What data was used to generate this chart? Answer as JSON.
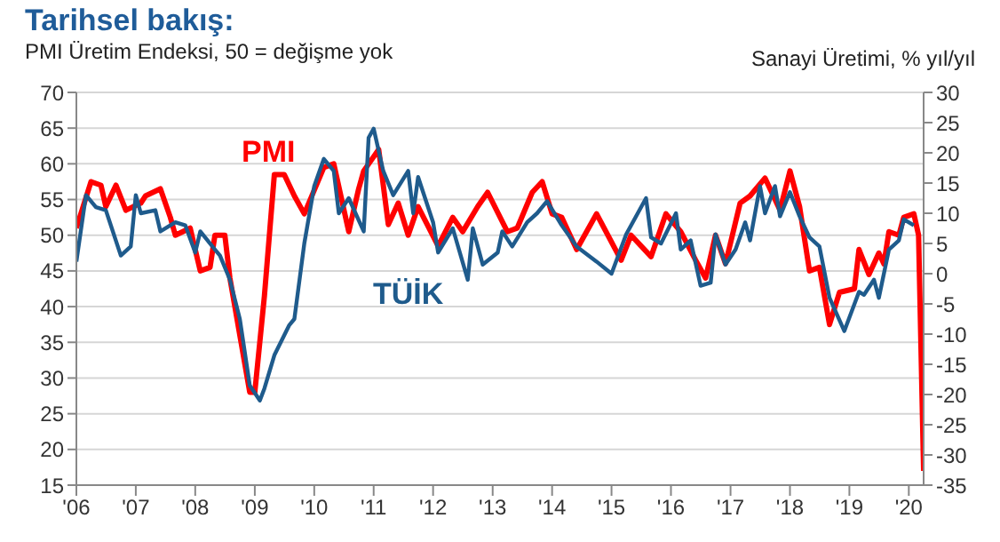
{
  "chart_data": {
    "type": "line",
    "title": "Tarihsel bakış:",
    "ylabel": "PMI Üretim Endeksi, 50 = değişme yok",
    "y2label": "Sanayi Üretimi, % yıl/yıl",
    "xlim": [
      "2006-01",
      "2020-04"
    ],
    "xticks": [
      {
        "value": "2006-01",
        "label": "'06"
      },
      {
        "value": "2007-01",
        "label": "'07"
      },
      {
        "value": "2008-01",
        "label": "'08"
      },
      {
        "value": "2009-01",
        "label": "'09"
      },
      {
        "value": "2010-01",
        "label": "'10"
      },
      {
        "value": "2011-01",
        "label": "'11"
      },
      {
        "value": "2012-01",
        "label": "'12"
      },
      {
        "value": "2013-01",
        "label": "'13"
      },
      {
        "value": "2014-01",
        "label": "'14"
      },
      {
        "value": "2015-01",
        "label": "'15"
      },
      {
        "value": "2016-01",
        "label": "'16"
      },
      {
        "value": "2017-01",
        "label": "'17"
      },
      {
        "value": "2018-01",
        "label": "'18"
      },
      {
        "value": "2019-01",
        "label": "'19"
      },
      {
        "value": "2020-01",
        "label": "'20"
      }
    ],
    "ylim": [
      15,
      70
    ],
    "yticks": [
      15,
      20,
      25,
      30,
      35,
      40,
      45,
      50,
      55,
      60,
      65,
      70
    ],
    "y2lim": [
      -35,
      30
    ],
    "y2ticks": [
      -35,
      -30,
      -25,
      -20,
      -15,
      -10,
      -5,
      0,
      5,
      10,
      15,
      20,
      25,
      30
    ],
    "grid": "y",
    "marker": "none",
    "line_style": "solid",
    "series": [
      {
        "name": "PMI",
        "color": "#ff0000",
        "x": [
          "2006-01",
          "2006-04",
          "2006-06",
          "2006-07",
          "2006-09",
          "2006-11",
          "2007-02",
          "2007-03",
          "2007-06",
          "2007-08",
          "2007-09",
          "2007-12",
          "2008-02",
          "2008-04",
          "2008-05",
          "2008-07",
          "2008-08",
          "2008-12",
          "2009-01",
          "2009-03",
          "2009-05",
          "2009-07",
          "2009-09",
          "2009-11",
          "2010-03",
          "2010-05",
          "2010-08",
          "2010-10",
          "2010-11",
          "2011-02",
          "2011-04",
          "2011-06",
          "2011-08",
          "2011-10",
          "2012-02",
          "2012-05",
          "2012-07",
          "2012-10",
          "2012-12",
          "2013-04",
          "2013-06",
          "2013-09",
          "2013-11",
          "2014-01",
          "2014-03",
          "2014-06",
          "2014-10",
          "2015-03",
          "2015-05",
          "2015-09",
          "2015-12",
          "2016-03",
          "2016-06",
          "2016-08",
          "2016-10",
          "2016-12",
          "2017-03",
          "2017-05",
          "2017-08",
          "2017-11",
          "2018-01",
          "2018-03",
          "2018-05",
          "2018-07",
          "2018-09",
          "2018-11",
          "2019-02",
          "2019-03",
          "2019-05",
          "2019-07",
          "2019-08",
          "2019-09",
          "2019-11",
          "2019-12",
          "2020-02",
          "2020-03",
          "2020-04"
        ],
        "values": [
          51,
          57.5,
          57,
          54,
          57,
          53.5,
          54.5,
          55.5,
          56.5,
          52.5,
          50,
          51,
          45,
          45.5,
          50,
          50,
          44,
          28,
          28,
          41.5,
          58.5,
          58.5,
          55.5,
          53,
          59.5,
          60,
          50.5,
          56.5,
          59,
          62,
          51.5,
          54.5,
          50,
          54,
          48.5,
          52.5,
          50.5,
          54,
          56,
          50.5,
          51,
          56,
          57.5,
          53,
          52.5,
          48,
          53,
          46.5,
          50,
          47,
          53,
          50.5,
          46.5,
          44,
          50,
          46,
          54.5,
          55.5,
          58,
          53.5,
          59,
          54,
          45,
          45.5,
          37.5,
          42,
          42.5,
          48,
          44.5,
          47.5,
          46,
          50.5,
          50,
          52.5,
          53,
          50,
          17
        ]
      },
      {
        "name": "TÜİK",
        "color": "#1f5b8c",
        "axis": "y2",
        "x": [
          "2006-01",
          "2006-03",
          "2006-05",
          "2006-07",
          "2006-10",
          "2006-12",
          "2007-01",
          "2007-02",
          "2007-05",
          "2007-06",
          "2007-09",
          "2007-11",
          "2008-01",
          "2008-02",
          "2008-05",
          "2008-06",
          "2008-08",
          "2008-10",
          "2008-12",
          "2009-02",
          "2009-03",
          "2009-05",
          "2009-08",
          "2009-09",
          "2009-11",
          "2010-01",
          "2010-03",
          "2010-05",
          "2010-06",
          "2010-08",
          "2010-11",
          "2010-12",
          "2011-01",
          "2011-03",
          "2011-05",
          "2011-08",
          "2011-09",
          "2011-10",
          "2012-01",
          "2012-02",
          "2012-05",
          "2012-08",
          "2012-09",
          "2012-11",
          "2013-02",
          "2013-03",
          "2013-05",
          "2013-08",
          "2013-10",
          "2013-12",
          "2014-03",
          "2014-06",
          "2014-10",
          "2015-01",
          "2015-04",
          "2015-08",
          "2015-09",
          "2015-11",
          "2016-02",
          "2016-03",
          "2016-05",
          "2016-07",
          "2016-09",
          "2016-10",
          "2016-12",
          "2017-02",
          "2017-04",
          "2017-05",
          "2017-07",
          "2017-08",
          "2017-10",
          "2017-11",
          "2018-01",
          "2018-03",
          "2018-05",
          "2018-07",
          "2018-09",
          "2018-12",
          "2019-03",
          "2019-04",
          "2019-06",
          "2019-07",
          "2019-09",
          "2019-11",
          "2019-12",
          "2020-02"
        ],
        "values": [
          2,
          13,
          11,
          10.5,
          3,
          4.5,
          13,
          10,
          10.5,
          7,
          8.5,
          8,
          3.5,
          7,
          4,
          3,
          -1,
          -7.5,
          -18.5,
          -21,
          -19,
          -13.5,
          -8.5,
          -7.5,
          5,
          14.5,
          19,
          17,
          10,
          12.5,
          7,
          22.5,
          24,
          17,
          13,
          17,
          10,
          16,
          8.5,
          3.5,
          7.5,
          -1,
          7.5,
          1.5,
          3.5,
          7,
          4.5,
          8.5,
          10,
          12,
          8,
          4.5,
          2,
          0,
          6.5,
          12.5,
          6,
          5,
          10,
          4,
          5.5,
          -2,
          -1.5,
          6.5,
          1.5,
          4,
          8.5,
          5.5,
          14.5,
          10,
          14.5,
          9.5,
          13.5,
          9.5,
          6,
          4.5,
          -4,
          -9.5,
          -3,
          -3.5,
          -1,
          -4,
          4,
          5.5,
          9,
          8
        ]
      }
    ]
  }
}
